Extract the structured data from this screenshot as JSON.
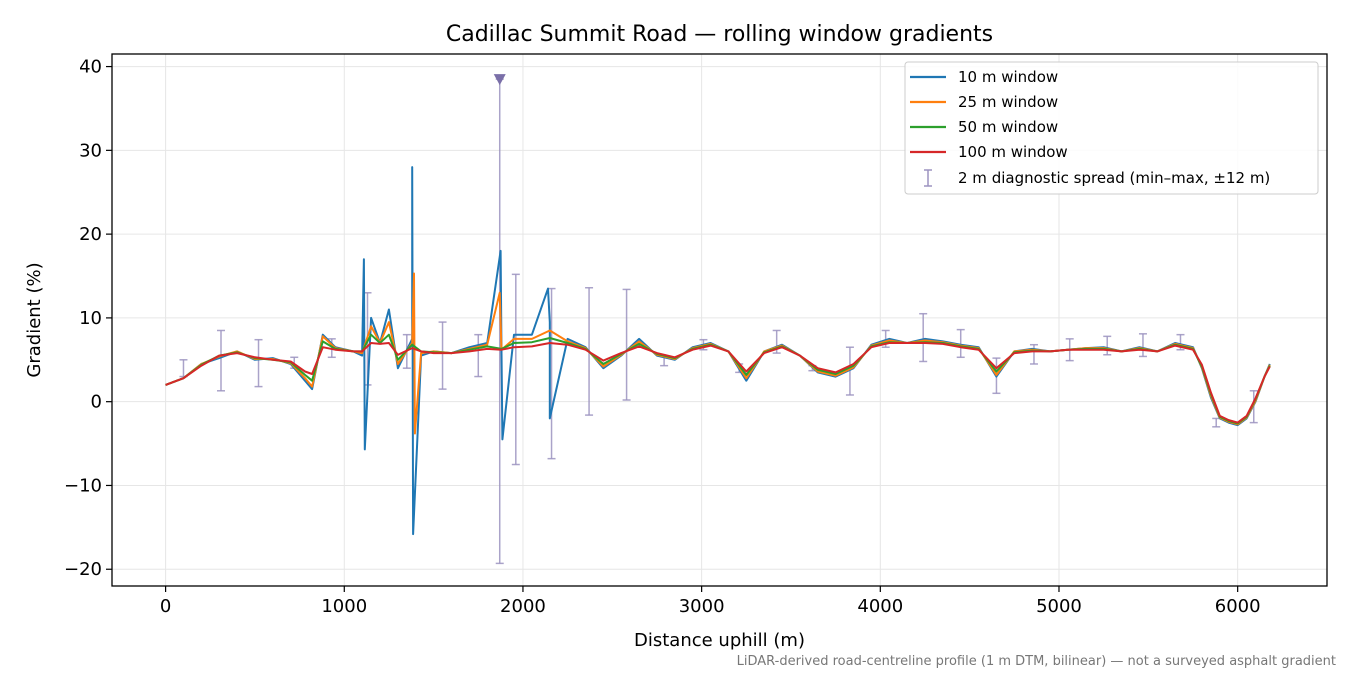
{
  "chart_data": {
    "type": "line",
    "title": "Cadillac Summit Road — rolling window gradients",
    "xlabel": "Distance uphill (m)",
    "ylabel": "Gradient (%)",
    "footnote": "LiDAR-derived road-centreline profile (1 m DTM, bilinear) — not a surveyed asphalt gradient",
    "xlim": [
      -300,
      6500
    ],
    "ylim": [
      -22,
      41.5
    ],
    "x_ticks": [
      0,
      1000,
      2000,
      3000,
      4000,
      5000,
      6000
    ],
    "x_tick_labels": [
      "0",
      "1000",
      "2000",
      "3000",
      "4000",
      "5000",
      "6000"
    ],
    "y_ticks": [
      -20,
      -10,
      0,
      10,
      20,
      30,
      40
    ],
    "y_tick_labels": [
      "−20",
      "−10",
      "0",
      "10",
      "20",
      "30",
      "40"
    ],
    "grid": true,
    "legend_position": "top-right",
    "x": [
      0,
      100,
      200,
      300,
      400,
      500,
      600,
      700,
      780,
      820,
      880,
      950,
      1050,
      1100,
      1150,
      1200,
      1250,
      1300,
      1380,
      1430,
      1500,
      1600,
      1700,
      1800,
      1880,
      1950,
      2050,
      2150,
      2250,
      2350,
      2450,
      2550,
      2650,
      2750,
      2850,
      2950,
      3050,
      3150,
      3250,
      3350,
      3450,
      3550,
      3650,
      3750,
      3850,
      3950,
      4050,
      4150,
      4250,
      4350,
      4450,
      4550,
      4650,
      4750,
      4850,
      4950,
      5050,
      5150,
      5250,
      5350,
      5450,
      5550,
      5650,
      5750,
      5800,
      5850,
      5900,
      5950,
      6000,
      6050,
      6100,
      6150,
      6180
    ],
    "series": [
      {
        "name": "10 m window",
        "color": "#1f77b4",
        "values": [
          2.0,
          2.8,
          4.5,
          5.2,
          6.0,
          5.0,
          5.2,
          4.5,
          2.5,
          1.5,
          8.0,
          6.5,
          6.0,
          5.5,
          10.0,
          7.0,
          11.0,
          4.0,
          7.5,
          5.5,
          6.0,
          5.8,
          6.5,
          7.0,
          6.0,
          8.0,
          8.0,
          9.5,
          7.5,
          6.5,
          4.0,
          5.5,
          7.5,
          5.5,
          5.0,
          6.5,
          7.0,
          6.0,
          2.5,
          6.0,
          6.8,
          5.5,
          3.5,
          3.0,
          4.0,
          6.8,
          7.5,
          7.0,
          7.5,
          7.2,
          6.8,
          6.5,
          3.0,
          6.0,
          6.3,
          6.0,
          6.2,
          6.4,
          6.5,
          6.0,
          6.5,
          6.0,
          7.0,
          6.5,
          4.0,
          0.5,
          -2.0,
          -2.5,
          -2.8,
          -2.0,
          0.0,
          3.0,
          4.5
        ]
      },
      {
        "name": "25 m window",
        "color": "#ff7f0e",
        "values": [
          2.0,
          2.8,
          4.5,
          5.4,
          6.0,
          5.1,
          5.1,
          4.6,
          2.8,
          1.8,
          7.8,
          6.4,
          6.0,
          5.8,
          9.0,
          7.0,
          9.5,
          4.5,
          7.0,
          5.8,
          6.0,
          5.8,
          6.3,
          6.8,
          6.2,
          7.5,
          7.5,
          8.5,
          7.2,
          6.4,
          4.2,
          5.6,
          7.2,
          5.6,
          5.1,
          6.4,
          6.9,
          6.0,
          2.8,
          6.0,
          6.7,
          5.5,
          3.6,
          3.1,
          4.1,
          6.7,
          7.3,
          7.0,
          7.3,
          7.1,
          6.7,
          6.4,
          3.2,
          6.0,
          6.2,
          6.0,
          6.2,
          6.4,
          6.4,
          6.0,
          6.4,
          6.0,
          6.9,
          6.4,
          4.1,
          0.7,
          -1.9,
          -2.4,
          -2.7,
          -1.9,
          0.1,
          3.0,
          4.4
        ]
      },
      {
        "name": "50 m window",
        "color": "#2ca02c",
        "values": [
          2.0,
          2.8,
          4.4,
          5.5,
          5.9,
          5.2,
          5.0,
          4.7,
          3.2,
          2.5,
          7.2,
          6.3,
          6.0,
          6.0,
          8.0,
          7.0,
          8.0,
          5.0,
          6.8,
          6.0,
          5.9,
          5.8,
          6.2,
          6.6,
          6.3,
          7.0,
          7.1,
          7.6,
          7.0,
          6.3,
          4.5,
          5.7,
          6.9,
          5.7,
          5.2,
          6.3,
          6.8,
          6.0,
          3.2,
          5.9,
          6.6,
          5.5,
          3.8,
          3.3,
          4.3,
          6.6,
          7.1,
          7.0,
          7.1,
          7.0,
          6.6,
          6.3,
          3.6,
          5.9,
          6.1,
          6.0,
          6.2,
          6.3,
          6.3,
          6.0,
          6.3,
          6.0,
          6.8,
          6.3,
          4.2,
          0.9,
          -1.8,
          -2.3,
          -2.6,
          -1.8,
          0.3,
          3.0,
          4.3
        ]
      },
      {
        "name": "100 m window",
        "color": "#d62728",
        "values": [
          2.0,
          2.8,
          4.3,
          5.5,
          5.8,
          5.3,
          5.0,
          4.8,
          3.6,
          3.3,
          6.5,
          6.2,
          6.0,
          6.0,
          7.0,
          6.9,
          7.0,
          5.6,
          6.4,
          6.0,
          5.8,
          5.8,
          6.0,
          6.3,
          6.2,
          6.5,
          6.6,
          7.0,
          6.8,
          6.2,
          4.9,
          5.8,
          6.6,
          5.8,
          5.3,
          6.2,
          6.7,
          6.0,
          3.6,
          5.8,
          6.5,
          5.5,
          4.0,
          3.5,
          4.5,
          6.5,
          7.0,
          7.0,
          7.0,
          6.9,
          6.5,
          6.2,
          4.0,
          5.8,
          6.0,
          6.0,
          6.2,
          6.2,
          6.2,
          6.0,
          6.2,
          6.0,
          6.7,
          6.2,
          4.4,
          1.1,
          -1.7,
          -2.2,
          -2.5,
          -1.7,
          0.4,
          3.0,
          4.2
        ]
      }
    ],
    "spikes_10m": [
      {
        "x": 1110,
        "y": 17.0
      },
      {
        "x": 1115,
        "y": -5.7
      },
      {
        "x": 1380,
        "y": 28.0
      },
      {
        "x": 1385,
        "y": -15.8
      },
      {
        "x": 1875,
        "y": 18.0
      },
      {
        "x": 1885,
        "y": -4.5
      },
      {
        "x": 2140,
        "y": 13.5
      },
      {
        "x": 2150,
        "y": -2.0
      }
    ],
    "spikes_25m": [
      {
        "x": 1390,
        "y": 15.3
      },
      {
        "x": 1395,
        "y": -3.8
      },
      {
        "x": 1870,
        "y": 13.0
      }
    ],
    "diagnostic_spread": {
      "name": "2 m diagnostic spread (min–max, ±12 m)",
      "color": "#9c93c0",
      "points": [
        {
          "x": 100,
          "low": 3.0,
          "high": 5.0
        },
        {
          "x": 310,
          "low": 1.3,
          "high": 8.5
        },
        {
          "x": 520,
          "low": 1.8,
          "high": 7.4
        },
        {
          "x": 720,
          "low": 4.0,
          "high": 5.3
        },
        {
          "x": 930,
          "low": 5.3,
          "high": 7.5
        },
        {
          "x": 1130,
          "low": 2.0,
          "high": 13.0
        },
        {
          "x": 1350,
          "low": 4.0,
          "high": 8.0
        },
        {
          "x": 1550,
          "low": 1.5,
          "high": 9.5
        },
        {
          "x": 1750,
          "low": 3.0,
          "high": 8.0
        },
        {
          "x": 1870,
          "low": -19.3,
          "high": 38.5
        },
        {
          "x": 1960,
          "low": -7.5,
          "high": 15.2
        },
        {
          "x": 2160,
          "low": -6.8,
          "high": 13.5
        },
        {
          "x": 2370,
          "low": -1.6,
          "high": 13.6
        },
        {
          "x": 2580,
          "low": 0.2,
          "high": 13.4
        },
        {
          "x": 2790,
          "low": 4.3,
          "high": 5.4
        },
        {
          "x": 3010,
          "low": 6.2,
          "high": 7.4
        },
        {
          "x": 3210,
          "low": 3.5,
          "high": 4.5
        },
        {
          "x": 3420,
          "low": 5.8,
          "high": 8.5
        },
        {
          "x": 3620,
          "low": 3.7,
          "high": 4.3
        },
        {
          "x": 3830,
          "low": 0.8,
          "high": 6.5
        },
        {
          "x": 4030,
          "low": 6.5,
          "high": 8.5
        },
        {
          "x": 4240,
          "low": 4.8,
          "high": 10.5
        },
        {
          "x": 4450,
          "low": 5.3,
          "high": 8.6
        },
        {
          "x": 4650,
          "low": 1.0,
          "high": 5.2
        },
        {
          "x": 4860,
          "low": 4.5,
          "high": 6.8
        },
        {
          "x": 5060,
          "low": 4.9,
          "high": 7.5
        },
        {
          "x": 5270,
          "low": 5.6,
          "high": 7.8
        },
        {
          "x": 5470,
          "low": 5.4,
          "high": 8.1
        },
        {
          "x": 5680,
          "low": 6.2,
          "high": 8.0
        },
        {
          "x": 5880,
          "low": -3.0,
          "high": -2.0
        },
        {
          "x": 6090,
          "low": -2.5,
          "high": 1.3
        }
      ],
      "clipped_marker": {
        "x": 1870,
        "y": 38.5
      }
    }
  }
}
